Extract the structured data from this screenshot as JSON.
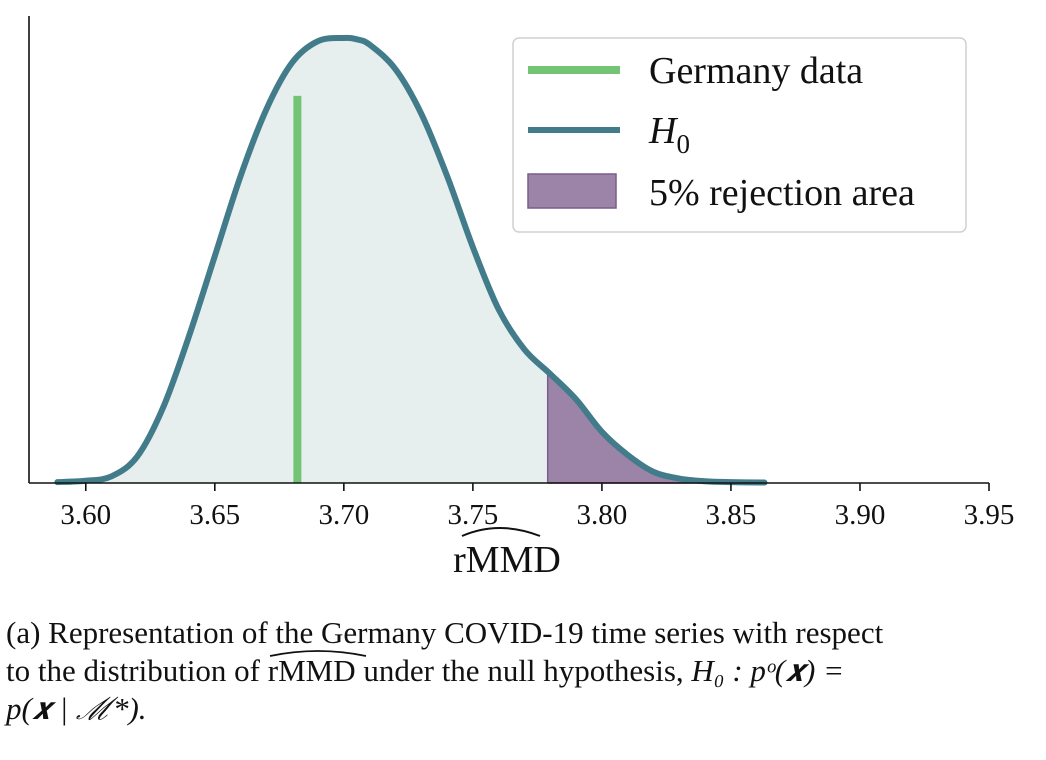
{
  "chart_data": {
    "type": "area",
    "xlabel": "rMMD",
    "xlabel_hat": true,
    "xlim": [
      3.578,
      3.95
    ],
    "x_ticks": [
      "3.60",
      "3.65",
      "3.70",
      "3.75",
      "3.80",
      "3.85",
      "3.90",
      "3.95"
    ],
    "x_tick_values": [
      3.6,
      3.65,
      3.7,
      3.75,
      3.8,
      3.85,
      3.9,
      3.95
    ],
    "ylim": [
      0,
      1.0
    ],
    "y_ticks": [],
    "grid": false,
    "legend_position": "top-right",
    "series": [
      {
        "name": "H0",
        "kind": "density",
        "color": "#427c8a",
        "fill": "#e6eeee",
        "x": [
          3.589,
          3.6,
          3.61,
          3.62,
          3.63,
          3.64,
          3.65,
          3.66,
          3.67,
          3.68,
          3.69,
          3.7,
          3.705,
          3.71,
          3.72,
          3.73,
          3.74,
          3.75,
          3.76,
          3.77,
          3.78,
          3.79,
          3.8,
          3.81,
          3.82,
          3.83,
          3.84,
          3.85,
          3.863
        ],
        "y": [
          0.002,
          0.005,
          0.015,
          0.06,
          0.17,
          0.33,
          0.51,
          0.69,
          0.84,
          0.945,
          0.993,
          1.0,
          0.997,
          0.985,
          0.93,
          0.83,
          0.69,
          0.53,
          0.39,
          0.3,
          0.245,
          0.188,
          0.115,
          0.063,
          0.025,
          0.01,
          0.004,
          0.002,
          0.001
        ]
      },
      {
        "name": "Germany data",
        "kind": "vline",
        "color": "#74c476",
        "x_value": 3.682,
        "y_top": 0.87
      },
      {
        "name": "5% rejection area",
        "kind": "tail_area",
        "color": "#9b84a8",
        "edge": "#7a5c8e",
        "x_from": 3.779
      }
    ],
    "legend_labels": {
      "germany": "Germany data",
      "h0_main": "H",
      "h0_sub": "0",
      "rejection": "5% rejection area"
    }
  },
  "caption": {
    "line1": "(a) Representation of the Germany COVID-19 time series with respect",
    "line2_pre": "to the distribution of ",
    "line2_symbol": "rMMD",
    "line2_post": " under the null hypothesis, ",
    "line2_math": "H₀ : pᵒ(𝒙) =",
    "line3_math": "p(𝒙 | ℳ*)."
  }
}
